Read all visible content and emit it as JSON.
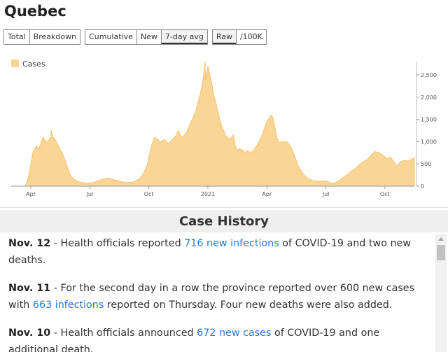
{
  "header": {
    "title": "Quebec"
  },
  "controls": {
    "group1": [
      {
        "label": "Total",
        "active": false
      },
      {
        "label": "Breakdown",
        "active": false
      }
    ],
    "group2": [
      {
        "label": "Cumulative",
        "active": false
      },
      {
        "label": "New",
        "active": false
      },
      {
        "label": "7-day avg",
        "active": true
      }
    ],
    "group3": [
      {
        "label": "Raw",
        "active": true
      },
      {
        "label": "/100K",
        "active": false
      }
    ]
  },
  "colors": {
    "area_fill": "#f9d596",
    "area_stroke": "#f5c36b",
    "link": "#2878d6"
  },
  "chart_data": {
    "type": "area",
    "series": [
      {
        "name": "Cases"
      }
    ],
    "legend": "top-left",
    "x_ticks": [
      "Apr",
      "Jul",
      "Oct",
      "2021",
      "Apr",
      "Jul",
      "Oct"
    ],
    "x_tick_months": [
      1,
      4,
      7,
      10,
      13,
      16,
      19
    ],
    "xlim_months": [
      0,
      20.5
    ],
    "y_ticks": [
      "0",
      "500",
      "1,000",
      "1,500",
      "2,000",
      "2,500"
    ],
    "y_tick_values": [
      0,
      500,
      1000,
      1500,
      2000,
      2500
    ],
    "ylim": [
      0,
      2800
    ],
    "points": [
      [
        0,
        0
      ],
      [
        0.7,
        0
      ],
      [
        0.8,
        80
      ],
      [
        0.9,
        250
      ],
      [
        1.0,
        500
      ],
      [
        1.1,
        750
      ],
      [
        1.2,
        850
      ],
      [
        1.3,
        900
      ],
      [
        1.4,
        820
      ],
      [
        1.5,
        950
      ],
      [
        1.6,
        1100
      ],
      [
        1.7,
        1050
      ],
      [
        1.8,
        1000
      ],
      [
        1.9,
        1020
      ],
      [
        2.0,
        1100
      ],
      [
        2.05,
        1250
      ],
      [
        2.1,
        1100
      ],
      [
        2.2,
        1080
      ],
      [
        2.4,
        900
      ],
      [
        2.6,
        750
      ],
      [
        2.8,
        500
      ],
      [
        3.0,
        250
      ],
      [
        3.2,
        150
      ],
      [
        3.5,
        90
      ],
      [
        3.8,
        70
      ],
      [
        4.2,
        80
      ],
      [
        4.6,
        150
      ],
      [
        4.9,
        180
      ],
      [
        5.2,
        150
      ],
      [
        5.5,
        110
      ],
      [
        5.8,
        80
      ],
      [
        6.2,
        90
      ],
      [
        6.5,
        160
      ],
      [
        6.7,
        270
      ],
      [
        6.9,
        450
      ],
      [
        7.0,
        650
      ],
      [
        7.1,
        850
      ],
      [
        7.2,
        1000
      ],
      [
        7.3,
        1100
      ],
      [
        7.45,
        1050
      ],
      [
        7.6,
        1000
      ],
      [
        7.8,
        1050
      ],
      [
        8.0,
        950
      ],
      [
        8.2,
        1050
      ],
      [
        8.4,
        1150
      ],
      [
        8.5,
        1250
      ],
      [
        8.6,
        1150
      ],
      [
        8.7,
        1100
      ],
      [
        8.9,
        1200
      ],
      [
        9.0,
        1300
      ],
      [
        9.2,
        1500
      ],
      [
        9.3,
        1600
      ],
      [
        9.4,
        1700
      ],
      [
        9.5,
        1900
      ],
      [
        9.6,
        2050
      ],
      [
        9.7,
        2250
      ],
      [
        9.8,
        2550
      ],
      [
        9.85,
        2800
      ],
      [
        9.9,
        2400
      ],
      [
        9.95,
        2550
      ],
      [
        10.0,
        2700
      ],
      [
        10.1,
        2500
      ],
      [
        10.2,
        2300
      ],
      [
        10.3,
        2050
      ],
      [
        10.5,
        1700
      ],
      [
        10.7,
        1350
      ],
      [
        10.9,
        1150
      ],
      [
        11.1,
        1050
      ],
      [
        11.3,
        1150
      ],
      [
        11.4,
        900
      ],
      [
        11.5,
        800
      ],
      [
        11.6,
        850
      ],
      [
        11.8,
        800
      ],
      [
        11.9,
        750
      ],
      [
        12.0,
        800
      ],
      [
        12.2,
        750
      ],
      [
        12.4,
        850
      ],
      [
        12.6,
        1000
      ],
      [
        12.8,
        1200
      ],
      [
        13.0,
        1450
      ],
      [
        13.2,
        1600
      ],
      [
        13.3,
        1550
      ],
      [
        13.4,
        1350
      ],
      [
        13.5,
        1100
      ],
      [
        13.6,
        980
      ],
      [
        13.8,
        1000
      ],
      [
        14.0,
        1000
      ],
      [
        14.2,
        900
      ],
      [
        14.4,
        700
      ],
      [
        14.6,
        450
      ],
      [
        14.8,
        300
      ],
      [
        15.0,
        200
      ],
      [
        15.3,
        130
      ],
      [
        15.6,
        110
      ],
      [
        15.9,
        120
      ],
      [
        16.1,
        100
      ],
      [
        16.3,
        60
      ],
      [
        16.6,
        100
      ],
      [
        16.9,
        200
      ],
      [
        17.2,
        300
      ],
      [
        17.5,
        400
      ],
      [
        17.8,
        520
      ],
      [
        18.1,
        600
      ],
      [
        18.3,
        700
      ],
      [
        18.5,
        780
      ],
      [
        18.7,
        750
      ],
      [
        18.9,
        700
      ],
      [
        19.1,
        620
      ],
      [
        19.3,
        650
      ],
      [
        19.5,
        520
      ],
      [
        19.6,
        450
      ],
      [
        19.8,
        550
      ],
      [
        20.0,
        580
      ],
      [
        20.2,
        560
      ],
      [
        20.4,
        620
      ],
      [
        20.5,
        640
      ]
    ]
  },
  "history": {
    "title": "Case History",
    "entries": [
      {
        "date": "Nov. 12",
        "pre": " - Health officials reported ",
        "link": "716 new infections",
        "post": " of COVID-19 and two new deaths."
      },
      {
        "date": "Nov. 11",
        "pre": " - For the second day in a row the province reported over 600 new cases with ",
        "link": "663 infections",
        "post": " reported on Thursday. Four new deaths were also added."
      },
      {
        "date": "Nov. 10",
        "pre": " - Health officials announced ",
        "link": "672 new cases",
        "post": " of COVID-19 and one additional death."
      }
    ]
  }
}
